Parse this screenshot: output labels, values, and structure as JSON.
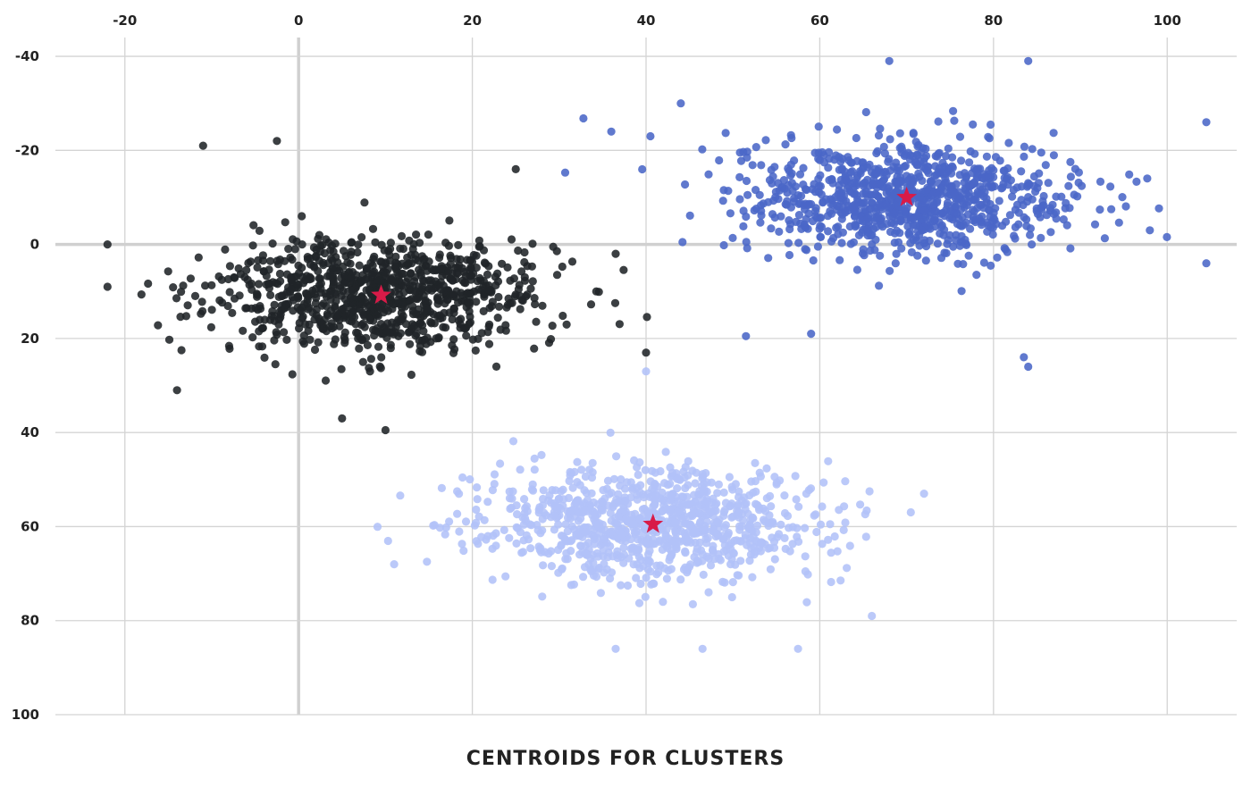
{
  "chart_data": {
    "type": "scatter",
    "title": "CENTROIDS FOR CLUSTERS",
    "xlabel": "",
    "ylabel": "",
    "xlim": [
      -28,
      108
    ],
    "ylim": [
      100,
      -44
    ],
    "x_ticks": [
      -20,
      0,
      20,
      40,
      60,
      80,
      100
    ],
    "y_ticks": [
      -40,
      -20,
      0,
      20,
      40,
      60,
      80,
      100
    ],
    "x_tick_labels": [
      "-20",
      "0",
      "20",
      "40",
      "60",
      "80",
      "100"
    ],
    "y_tick_labels": [
      "-40",
      "-20",
      "0",
      "20",
      "40",
      "60",
      "80",
      "100"
    ],
    "x_axis_position": "top",
    "y_axis_inverted": true,
    "grid": true,
    "legend": "none",
    "clusters": [
      {
        "color": "#202428",
        "center": [
          9.5,
          10.8
        ],
        "spread": [
          9.5,
          6.0
        ],
        "count": 950,
        "outliers": [
          [
            -22,
            0
          ],
          [
            -22,
            9
          ],
          [
            -11,
            -21
          ],
          [
            -2.5,
            -22
          ],
          [
            -14,
            31
          ],
          [
            5,
            37
          ],
          [
            10,
            39.5
          ],
          [
            25,
            -16
          ],
          [
            36.5,
            2
          ],
          [
            40,
            23
          ]
        ]
      },
      {
        "color": "#4a67c7",
        "center": [
          70,
          -10
        ],
        "spread": [
          9.5,
          6.0
        ],
        "count": 950,
        "outliers": [
          [
            104.5,
            -26
          ],
          [
            104.5,
            4
          ],
          [
            98,
            -3
          ],
          [
            36,
            -24
          ],
          [
            40.5,
            -23
          ],
          [
            44,
            -30
          ],
          [
            51.5,
            19.5
          ],
          [
            59,
            19
          ],
          [
            83.5,
            24
          ],
          [
            84,
            26
          ],
          [
            68,
            -39
          ],
          [
            84,
            -39
          ]
        ]
      },
      {
        "color": "#b2c2f8",
        "center": [
          40.5,
          59.5
        ],
        "spread": [
          9.5,
          6.0
        ],
        "count": 950,
        "outliers": [
          [
            40,
            27
          ],
          [
            72,
            53
          ],
          [
            11,
            68
          ],
          [
            36.5,
            86
          ],
          [
            46.5,
            86
          ],
          [
            57.5,
            86
          ],
          [
            66,
            79
          ]
        ]
      }
    ],
    "centroids": [
      {
        "x": 9.5,
        "y": 10.8,
        "color": "#d81b48"
      },
      {
        "x": 40.8,
        "y": 59.5,
        "color": "#d81b48"
      },
      {
        "x": 70,
        "y": -10,
        "color": "#d81b48"
      }
    ]
  }
}
